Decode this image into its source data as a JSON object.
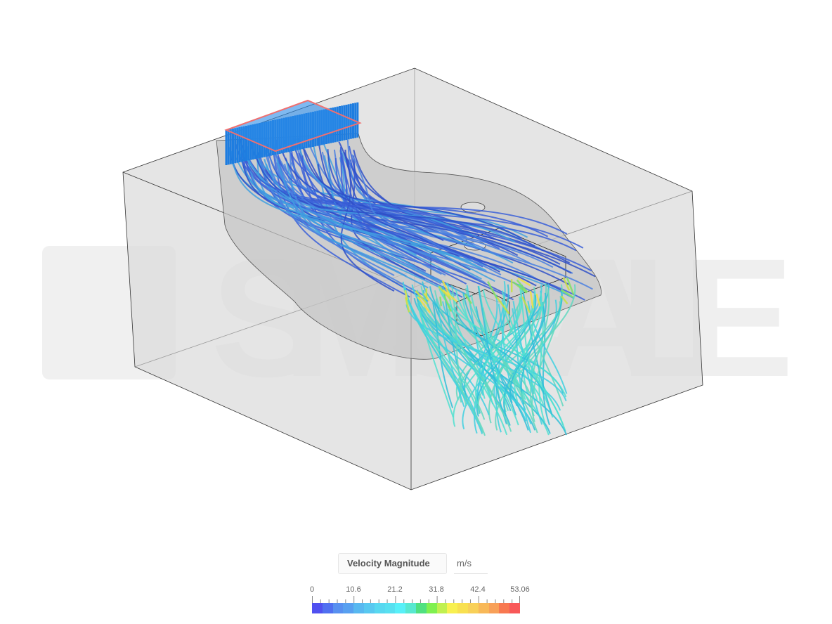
{
  "watermark": "SIMSCALE",
  "legend": {
    "title": "Velocity Magnitude",
    "unit": "m/s",
    "min": 0,
    "max": 53.06,
    "tick_labels": [
      "0",
      "10.6",
      "21.2",
      "31.8",
      "42.4",
      "53.06"
    ],
    "colors": [
      "#5050f0",
      "#5070f0",
      "#5890f0",
      "#58a0f0",
      "#58b8f0",
      "#58c8f0",
      "#58d8f0",
      "#58e0f0",
      "#58f0f8",
      "#58e8d0",
      "#50e080",
      "#80f050",
      "#c0f050",
      "#f8f050",
      "#f8e050",
      "#f8d058",
      "#f8b858",
      "#f8a058",
      "#f87850",
      "#f85858"
    ]
  },
  "colors": {
    "inlet_outline": "#f07070",
    "domain_fill": "#d8d8d8",
    "background": "#ffffff"
  }
}
